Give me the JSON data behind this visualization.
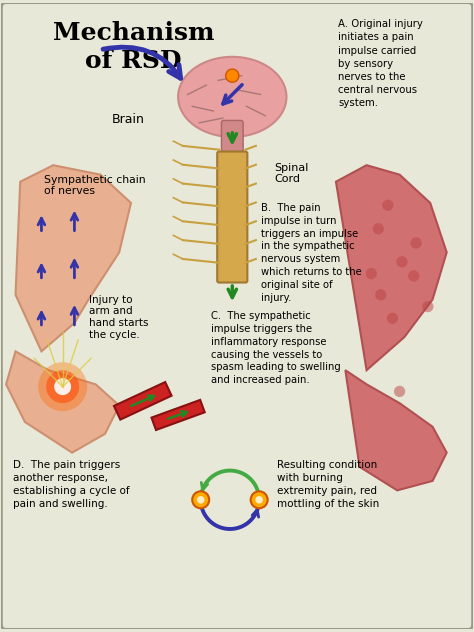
{
  "title": "Mechanism\nof RSD",
  "bg_color": "#e8e8d8",
  "border_color": "#999988",
  "title_color": "#000000",
  "title_fontsize": 18,
  "labels": {
    "brain": "Brain",
    "spinal_cord": "Spinal\nCord",
    "sympathetic": "Sympathetic chain\nof nerves",
    "injury": "Injury to\narm and\nhand starts\nthe cycle."
  },
  "annotations": {
    "A": "A. Original injury\ninitiates a pain\nimpulse carried\nby sensory\nnerves to the\ncentral nervous\nsystem.",
    "B": "B.  The pain\nimpulse in turn\ntriggers an impulse\nin the sympathetic\nnervous system\nwhich returns to the\noriginal site of\ninjury.",
    "C": "C.  The sympathetic\nimpulse triggers the\ninflammatory response\ncausing the vessels to\nspasm leading to swelling\nand increased pain.",
    "D": "D.  The pain triggers\nanother response,\nestablishing a cycle of\npain and swelling.",
    "E": "Resulting condition\nwith burning\nextremity pain, red\nmottling of the skin"
  },
  "colors": {
    "arrow_blue": "#3333aa",
    "arrow_green": "#228822",
    "brain_pink": "#e8a0a0",
    "arm_skin": "#e8b090",
    "arm_red": "#d07070",
    "spinal_gold": "#d4a84b",
    "vessel_red": "#cc2222",
    "highlight_orange": "#ff8800",
    "cycle_arrow": "#44aa44"
  }
}
